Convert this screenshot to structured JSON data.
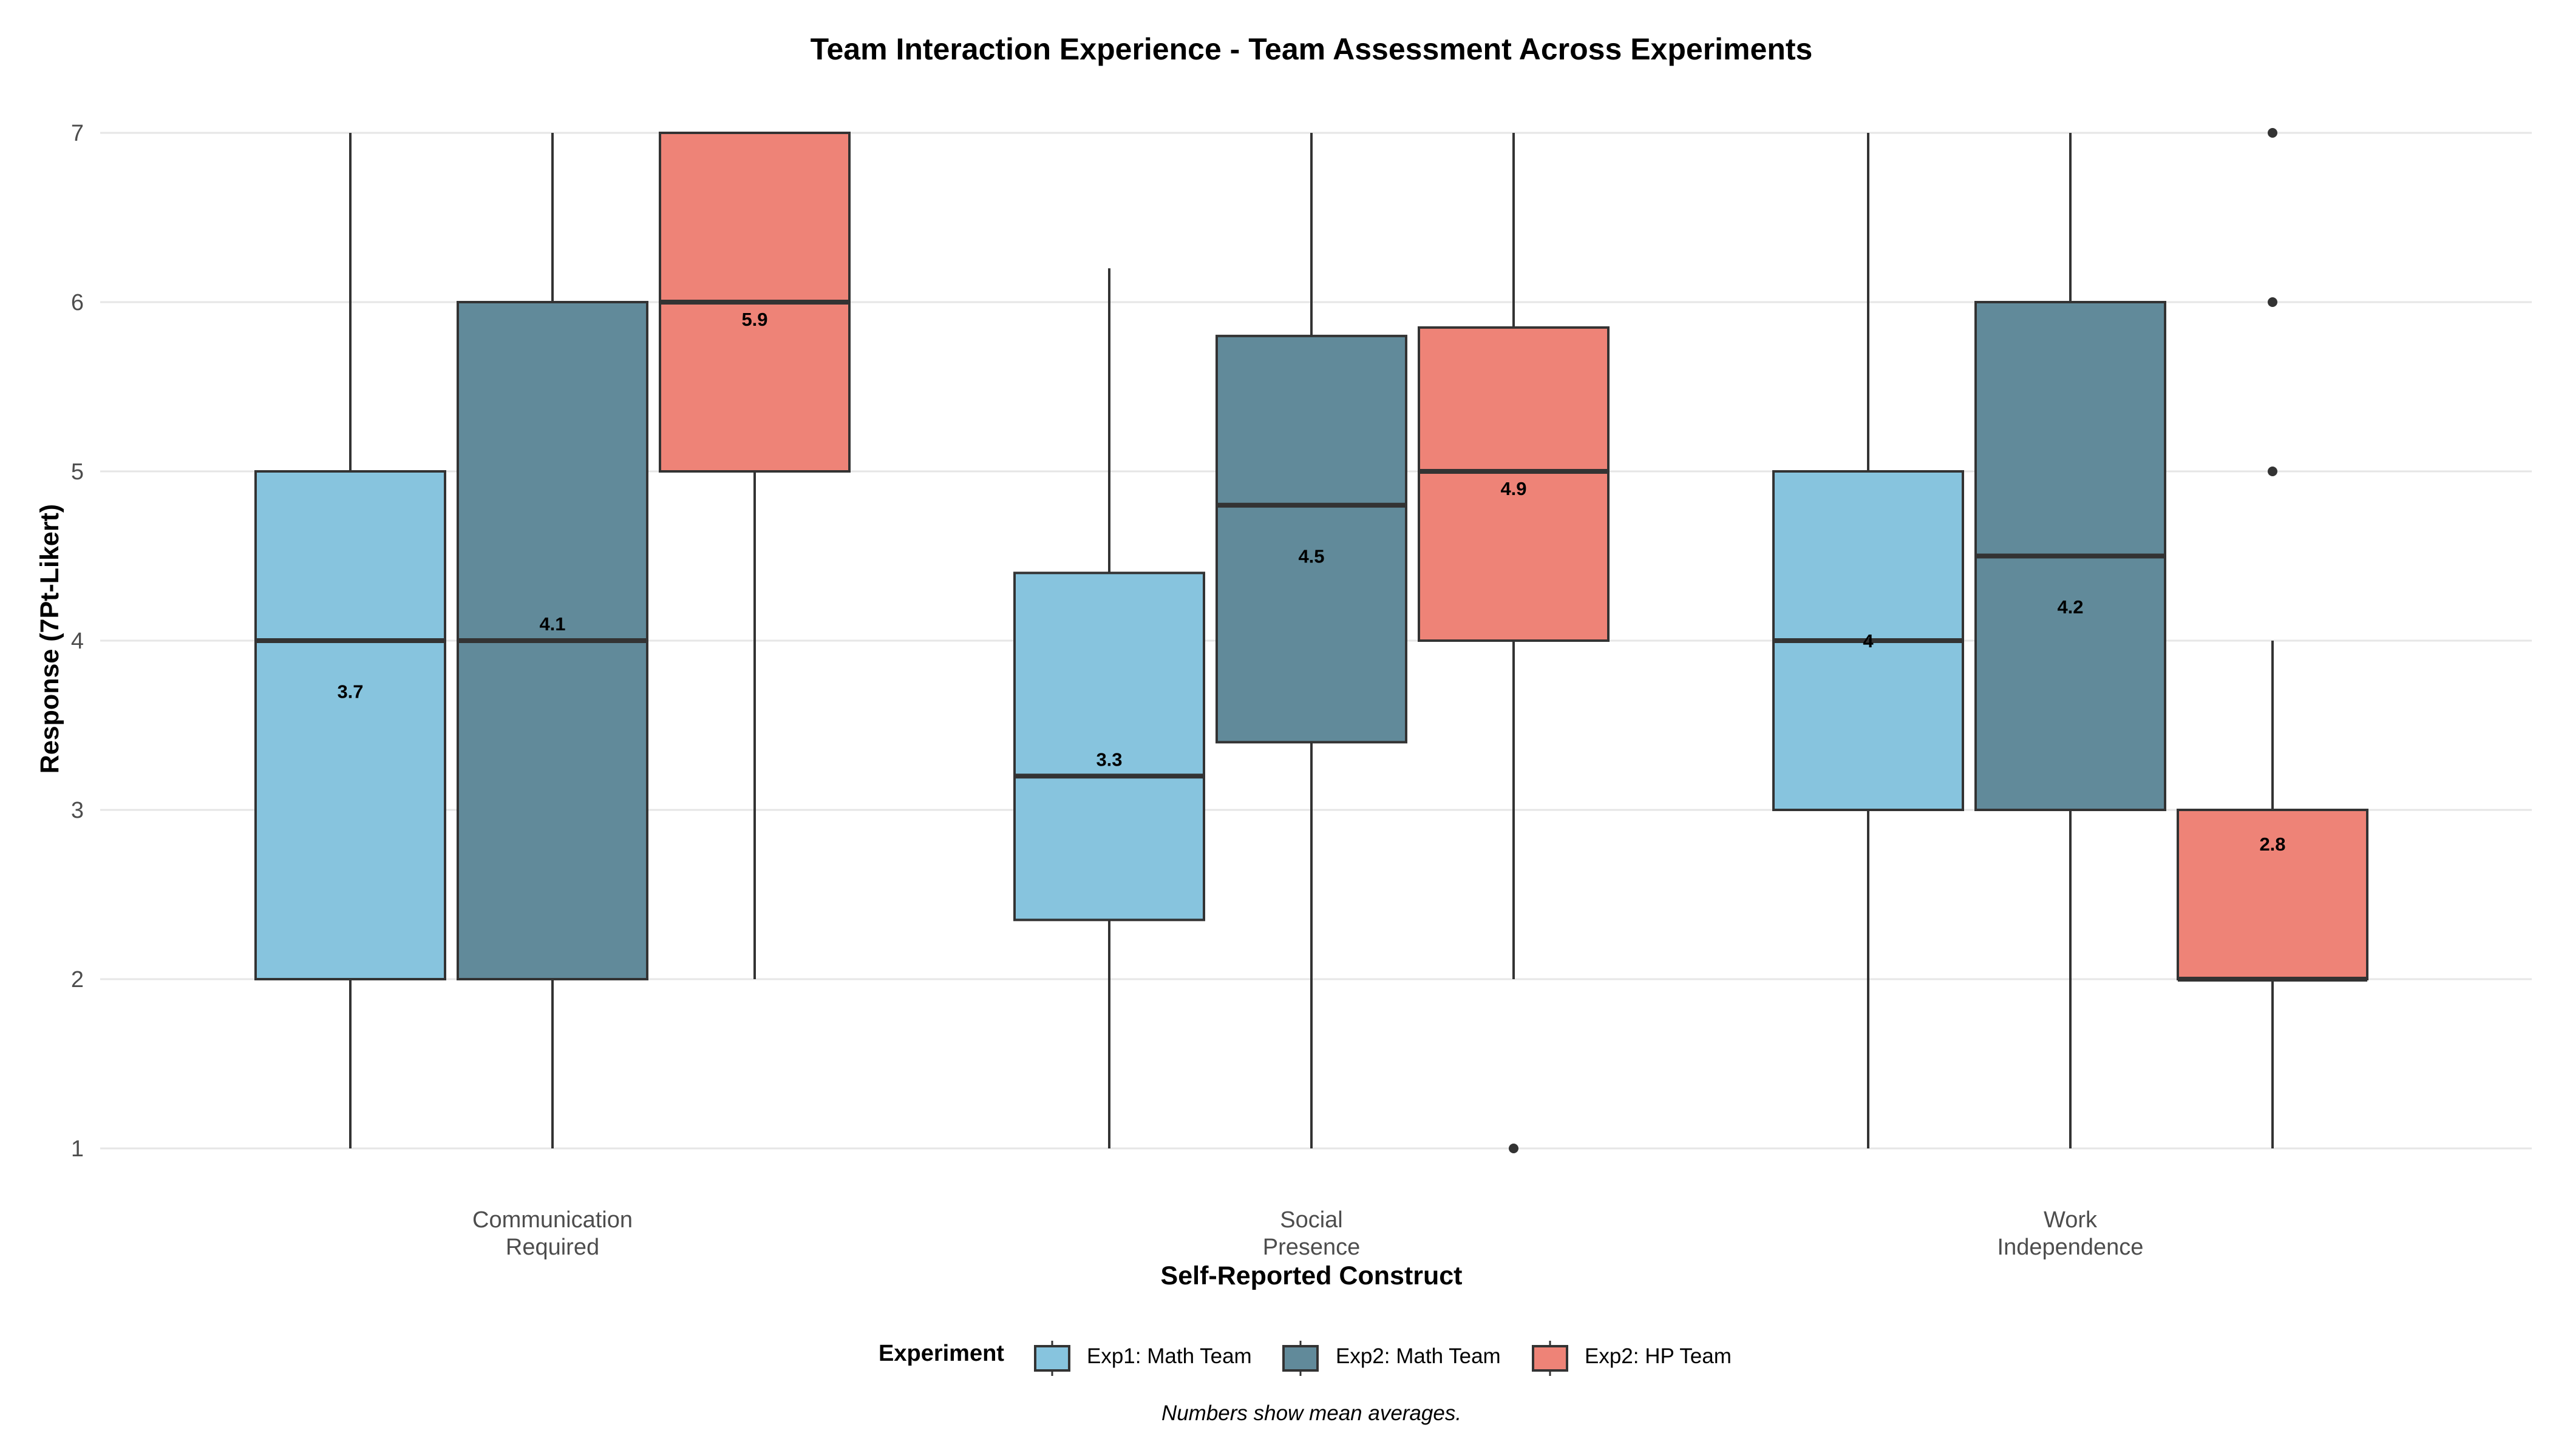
{
  "chart_data": {
    "type": "boxplot",
    "title": "Team Interaction Experience - Team Assessment Across Experiments",
    "xlabel": "Self-Reported Construct",
    "ylabel": "Response (7Pt-Likert)",
    "ylim": [
      1,
      7
    ],
    "yticks": [
      1,
      2,
      3,
      4,
      5,
      6,
      7
    ],
    "grid": true,
    "categories": [
      [
        "Communication",
        "Required"
      ],
      [
        "Social",
        "Presence"
      ],
      [
        "Work",
        "Independence"
      ]
    ],
    "legend": {
      "title": "Experiment",
      "placement": "bottom"
    },
    "caption": "Numbers show mean averages.",
    "series": [
      {
        "name": "Exp1: Math Team",
        "color": "#87c4de",
        "boxes": [
          {
            "min": 1,
            "q1": 2,
            "median": 4,
            "q3": 5,
            "max": 7,
            "mean": 3.7,
            "mean_label": "3.7",
            "outliers": []
          },
          {
            "min": 1,
            "q1": 2.35,
            "median": 3.2,
            "q3": 4.4,
            "max": 6.2,
            "mean": 3.3,
            "mean_label": "3.3",
            "outliers": []
          },
          {
            "min": 1,
            "q1": 3,
            "median": 4,
            "q3": 5,
            "max": 7,
            "mean": 4.0,
            "mean_label": "4",
            "outliers": []
          }
        ]
      },
      {
        "name": "Exp2: Math Team",
        "color": "#618a9a",
        "boxes": [
          {
            "min": 1,
            "q1": 2,
            "median": 4,
            "q3": 6,
            "max": 7,
            "mean": 4.1,
            "mean_label": "4.1",
            "outliers": []
          },
          {
            "min": 1,
            "q1": 3.4,
            "median": 4.8,
            "q3": 5.8,
            "max": 7,
            "mean": 4.5,
            "mean_label": "4.5",
            "outliers": []
          },
          {
            "min": 1,
            "q1": 3,
            "median": 4.5,
            "q3": 6,
            "max": 7,
            "mean": 4.2,
            "mean_label": "4.2",
            "outliers": []
          }
        ]
      },
      {
        "name": "Exp2: HP Team",
        "color": "#ee8377",
        "boxes": [
          {
            "min": 2,
            "q1": 5,
            "median": 6,
            "q3": 7,
            "max": 7,
            "mean": 5.9,
            "mean_label": "5.9",
            "outliers": []
          },
          {
            "min": 2,
            "q1": 4,
            "median": 5,
            "q3": 5.85,
            "max": 7,
            "mean": 4.9,
            "mean_label": "4.9",
            "outliers": [
              1
            ]
          },
          {
            "min": 1,
            "q1": 2,
            "median": 2,
            "q3": 3,
            "max": 4,
            "mean": 2.8,
            "mean_label": "2.8",
            "outliers": [
              5,
              6,
              7
            ]
          }
        ]
      }
    ]
  }
}
